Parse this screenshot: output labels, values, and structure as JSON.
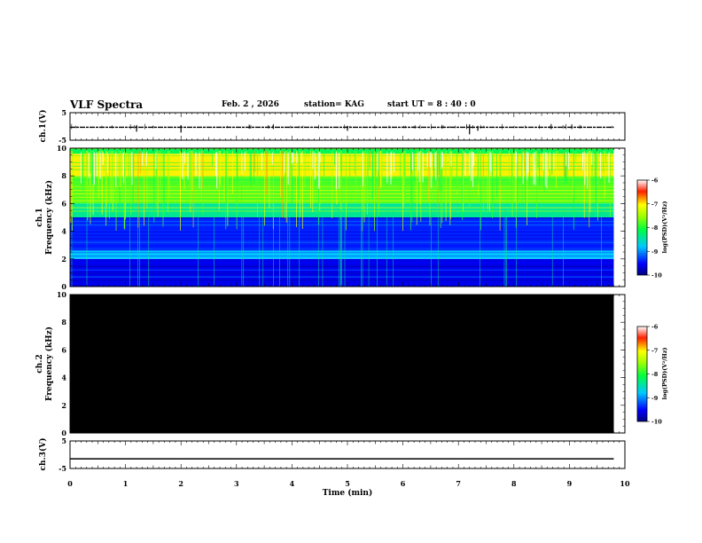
{
  "header": {
    "title": "VLF Spectra",
    "date": "Feb. 2 , 2026",
    "station": "station= KAG",
    "start_ut": "start UT = 8 : 40 : 0"
  },
  "chart_data": [
    {
      "id": "ch1-waveform",
      "type": "line",
      "ylabel": "ch.1(V)",
      "ylim": [
        -5,
        5
      ],
      "yticks": [
        "5",
        "-5"
      ],
      "x": [
        0,
        10
      ],
      "y": [
        -0.3,
        -0.3
      ],
      "note": "near-constant trace slightly below 0 V with small spikes"
    },
    {
      "id": "ch1-spectrogram",
      "type": "heatmap",
      "ylabel": "ch.1 Frequency (kHz)",
      "ylim": [
        0,
        10
      ],
      "yticks": [
        "0",
        "2",
        "4",
        "6",
        "8",
        "10"
      ],
      "xlim": [
        0,
        10
      ],
      "data_end_min": 9.8,
      "colorbar": {
        "label": "log(PSD)(V²/Hz)",
        "ticks": [
          "-6",
          "-7",
          "-8",
          "-9",
          "-10"
        ],
        "range": [
          -10,
          -6
        ]
      },
      "bands": [
        {
          "from_khz": 0,
          "to_khz": 2,
          "log_psd": -9.6
        },
        {
          "from_khz": 2,
          "to_khz": 2.6,
          "log_psd": -8.8
        },
        {
          "from_khz": 2.6,
          "to_khz": 5,
          "log_psd": -9.4
        },
        {
          "from_khz": 5,
          "to_khz": 6,
          "log_psd": -8.4
        },
        {
          "from_khz": 6,
          "to_khz": 8,
          "log_psd": -7.8
        },
        {
          "from_khz": 8,
          "to_khz": 9.6,
          "log_psd": -7.0
        },
        {
          "from_khz": 9.6,
          "to_khz": 10,
          "log_psd": -8.2
        }
      ]
    },
    {
      "id": "ch2-spectrogram",
      "type": "heatmap",
      "ylabel": "ch.2 Frequency (kHz)",
      "ylim": [
        0,
        10
      ],
      "yticks": [
        "0",
        "2",
        "4",
        "6",
        "8",
        "10"
      ],
      "xlim": [
        0,
        10
      ],
      "data_end_min": 9.8,
      "colorbar": {
        "label": "log(PSD)(V²/Hz)",
        "ticks": [
          "-6",
          "-7",
          "-8",
          "-9",
          "-10"
        ],
        "range": [
          -10,
          -6
        ]
      },
      "note": "no signal (all black)"
    },
    {
      "id": "ch3-waveform",
      "type": "line",
      "ylabel": "ch.3(V)",
      "ylim": [
        -5,
        5
      ],
      "yticks": [
        "5",
        "-5"
      ],
      "x": [
        0,
        9.8
      ],
      "y": [
        -1.5,
        -1.5
      ]
    }
  ],
  "xaxis": {
    "label": "Time (min)",
    "ticks": [
      "0",
      "1",
      "2",
      "3",
      "4",
      "5",
      "6",
      "7",
      "8",
      "9",
      "10"
    ],
    "range": [
      0,
      10
    ]
  }
}
